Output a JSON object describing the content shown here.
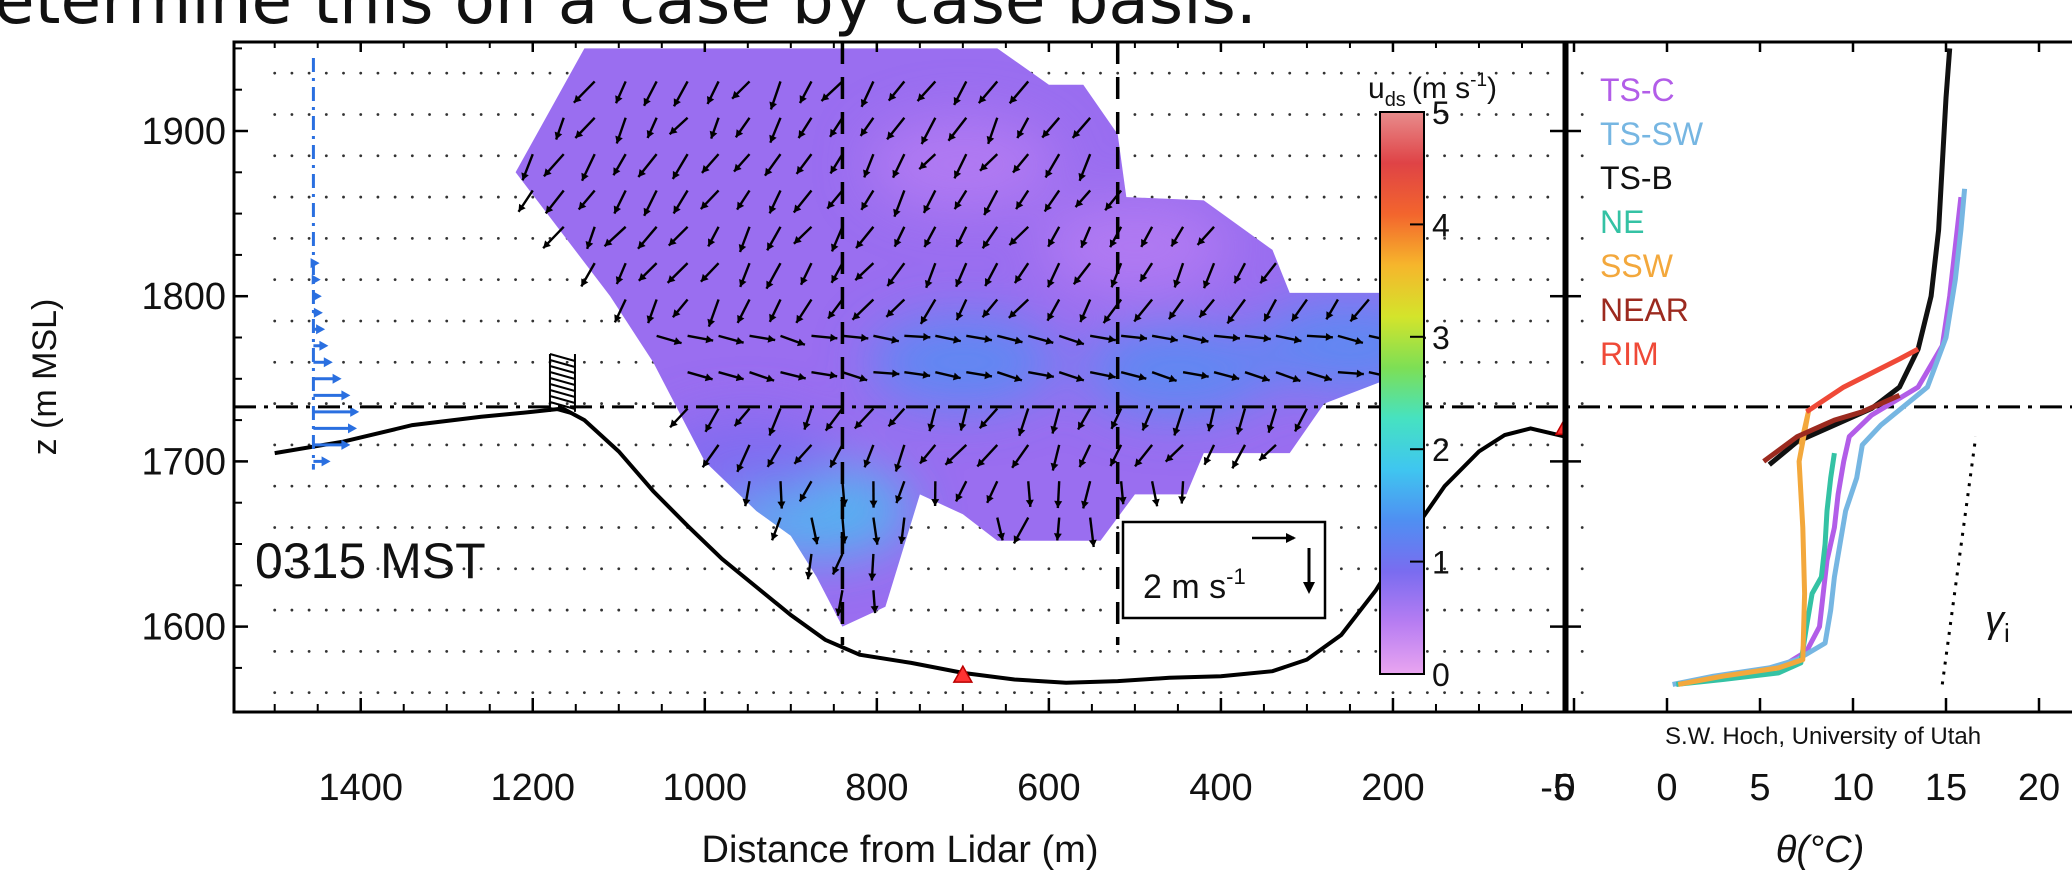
{
  "slide_heading": "etermine this on a case by case basis.",
  "credit": "S.W. Hoch, University of Utah",
  "chart_data": [
    {
      "type": "contour-vector",
      "time_label": "0315 MST",
      "xlabel": "Distance from Lidar (m)",
      "ylabel": "z (m MSL)",
      "xlim": [
        1500,
        0
      ],
      "ylim": [
        1555,
        1950
      ],
      "x_ticks": [
        "1400",
        "1200",
        "1000",
        "800",
        "600",
        "400",
        "200",
        "0"
      ],
      "y_ticks": [
        "1900",
        "1800",
        "1700",
        "1600"
      ],
      "colorbar": {
        "label_main": "u",
        "label_sub": "ds",
        "label_units": "(m s",
        "label_exp": "-1",
        "label_close": ")",
        "range": [
          0,
          5
        ],
        "ticks": [
          "5",
          "4",
          "3",
          "2",
          "1",
          "0"
        ],
        "colors": [
          "#e9a5f0",
          "#b77df2",
          "#7a6cf0",
          "#4f8ff2",
          "#3fc6f0",
          "#46e2c1",
          "#7ddf55",
          "#d4e42b",
          "#f6b62c",
          "#f3652d",
          "#df4346",
          "#e88c8c"
        ]
      },
      "reference_vector": {
        "label": "2 m s",
        "label_exp": "-1",
        "speed": 2
      },
      "inversion_height": 1733,
      "terrain_profile": [
        {
          "x": 1500,
          "z": 1705
        },
        {
          "x": 1420,
          "z": 1712
        },
        {
          "x": 1340,
          "z": 1722
        },
        {
          "x": 1260,
          "z": 1727
        },
        {
          "x": 1200,
          "z": 1730
        },
        {
          "x": 1165,
          "z": 1732
        },
        {
          "x": 1140,
          "z": 1725
        },
        {
          "x": 1100,
          "z": 1706
        },
        {
          "x": 1060,
          "z": 1682
        },
        {
          "x": 1020,
          "z": 1661
        },
        {
          "x": 980,
          "z": 1641
        },
        {
          "x": 940,
          "z": 1624
        },
        {
          "x": 900,
          "z": 1607
        },
        {
          "x": 860,
          "z": 1592
        },
        {
          "x": 820,
          "z": 1583
        },
        {
          "x": 760,
          "z": 1578
        },
        {
          "x": 700,
          "z": 1572
        },
        {
          "x": 640,
          "z": 1568
        },
        {
          "x": 580,
          "z": 1566
        },
        {
          "x": 520,
          "z": 1567
        },
        {
          "x": 460,
          "z": 1569
        },
        {
          "x": 400,
          "z": 1570
        },
        {
          "x": 340,
          "z": 1573
        },
        {
          "x": 300,
          "z": 1580
        },
        {
          "x": 260,
          "z": 1595
        },
        {
          "x": 220,
          "z": 1622
        },
        {
          "x": 180,
          "z": 1655
        },
        {
          "x": 140,
          "z": 1685
        },
        {
          "x": 100,
          "z": 1706
        },
        {
          "x": 70,
          "z": 1716
        },
        {
          "x": 40,
          "z": 1720
        },
        {
          "x": 0,
          "z": 1715
        },
        {
          "x": -40,
          "z": 1712
        }
      ],
      "scan_region": [
        {
          "x": 1140,
          "z": 1950
        },
        {
          "x": 660,
          "z": 1950
        },
        {
          "x": 600,
          "z": 1928
        },
        {
          "x": 560,
          "z": 1928
        },
        {
          "x": 520,
          "z": 1898
        },
        {
          "x": 510,
          "z": 1860
        },
        {
          "x": 420,
          "z": 1858
        },
        {
          "x": 340,
          "z": 1828
        },
        {
          "x": 320,
          "z": 1802
        },
        {
          "x": 180,
          "z": 1802
        },
        {
          "x": 180,
          "z": 1755
        },
        {
          "x": 280,
          "z": 1735
        },
        {
          "x": 320,
          "z": 1705
        },
        {
          "x": 420,
          "z": 1705
        },
        {
          "x": 440,
          "z": 1680
        },
        {
          "x": 500,
          "z": 1680
        },
        {
          "x": 540,
          "z": 1652
        },
        {
          "x": 660,
          "z": 1652
        },
        {
          "x": 700,
          "z": 1668
        },
        {
          "x": 750,
          "z": 1680
        },
        {
          "x": 790,
          "z": 1612
        },
        {
          "x": 840,
          "z": 1600
        },
        {
          "x": 870,
          "z": 1630
        },
        {
          "x": 900,
          "z": 1655
        },
        {
          "x": 940,
          "z": 1670
        },
        {
          "x": 1000,
          "z": 1700
        },
        {
          "x": 1060,
          "z": 1760
        },
        {
          "x": 1110,
          "z": 1800
        },
        {
          "x": 1220,
          "z": 1875
        }
      ],
      "speed_blobs": [
        {
          "x": 870,
          "z": 1670,
          "speed": 2.0
        },
        {
          "x": 700,
          "z": 1760,
          "speed": 1.5
        },
        {
          "x": 450,
          "z": 1755,
          "speed": 1.4
        },
        {
          "x": 250,
          "z": 1770,
          "speed": 1.3
        },
        {
          "x": 950,
          "z": 1700,
          "speed": 1.1
        },
        {
          "x": 700,
          "z": 1880,
          "speed": 0.6
        },
        {
          "x": 500,
          "z": 1830,
          "speed": 0.6
        }
      ],
      "sites": [
        {
          "x": 700,
          "z": 1570
        },
        {
          "x": 0,
          "z": 1720
        }
      ],
      "dashed_verticals": [
        840,
        520
      ],
      "upstream_profile": {
        "x": 1455,
        "z": [
          1700,
          1710,
          1720,
          1730,
          1740,
          1750,
          1760,
          1770,
          1780,
          1790,
          1800,
          1810,
          1820
        ],
        "u": [
          0.6,
          1.5,
          1.8,
          1.9,
          1.5,
          1.1,
          0.7,
          0.5,
          0.35,
          0.25,
          0.2,
          0.15,
          0.1
        ]
      },
      "tower": {
        "x": 1180,
        "z_bottom": 1730,
        "z_top": 1765
      }
    },
    {
      "type": "line",
      "xlabel": "θ(°C)",
      "xlim": [
        -5,
        20
      ],
      "x_ticks": [
        "-5",
        "0",
        "5",
        "10",
        "15",
        "20"
      ],
      "ylim": [
        1555,
        1950
      ],
      "annotation": "γ",
      "annotation_sub": "i",
      "legend_position": "top-left",
      "series": [
        {
          "name": "TS-C",
          "color": "#b25de8",
          "points": [
            [
              0.5,
              1565
            ],
            [
              2,
              1568
            ],
            [
              5,
              1572
            ],
            [
              6.5,
              1578
            ],
            [
              7.5,
              1585
            ],
            [
              8.2,
              1600
            ],
            [
              8.4,
              1620
            ],
            [
              8.6,
              1640
            ],
            [
              9,
              1660
            ],
            [
              9.2,
              1680
            ],
            [
              9.5,
              1700
            ],
            [
              9.8,
              1715
            ],
            [
              11,
              1728
            ],
            [
              13.5,
              1745
            ],
            [
              14.8,
              1770
            ],
            [
              15.2,
              1800
            ],
            [
              15.5,
              1830
            ],
            [
              15.8,
              1860
            ]
          ]
        },
        {
          "name": "TS-SW",
          "color": "#76b6e2",
          "points": [
            [
              0.3,
              1565
            ],
            [
              2.5,
              1570
            ],
            [
              5.5,
              1575
            ],
            [
              7,
              1580
            ],
            [
              8.5,
              1590
            ],
            [
              8.8,
              1610
            ],
            [
              9,
              1630
            ],
            [
              9.3,
              1650
            ],
            [
              9.6,
              1670
            ],
            [
              10.2,
              1690
            ],
            [
              10.5,
              1710
            ],
            [
              11.5,
              1722
            ],
            [
              14,
              1745
            ],
            [
              15,
              1775
            ],
            [
              15.5,
              1810
            ],
            [
              15.8,
              1840
            ],
            [
              16,
              1865
            ]
          ]
        },
        {
          "name": "TS-B",
          "color": "#111111",
          "points": [
            [
              5.5,
              1698
            ],
            [
              7,
              1712
            ],
            [
              9,
              1722
            ],
            [
              11,
              1732
            ],
            [
              12.5,
              1745
            ],
            [
              13.5,
              1768
            ],
            [
              14.2,
              1800
            ],
            [
              14.6,
              1840
            ],
            [
              14.8,
              1880
            ],
            [
              15,
              1920
            ],
            [
              15.2,
              1950
            ]
          ]
        },
        {
          "name": "NE",
          "color": "#34c2a4",
          "points": [
            [
              0.5,
              1565
            ],
            [
              3,
              1568
            ],
            [
              6,
              1572
            ],
            [
              7.2,
              1578
            ],
            [
              7.5,
              1600
            ],
            [
              7.8,
              1620
            ],
            [
              8.3,
              1630
            ],
            [
              8.5,
              1650
            ],
            [
              8.6,
              1670
            ],
            [
              8.8,
              1690
            ],
            [
              9,
              1705
            ]
          ]
        },
        {
          "name": "SSW",
          "color": "#f3a83c",
          "points": [
            [
              0.6,
              1565
            ],
            [
              3,
              1570
            ],
            [
              6,
              1575
            ],
            [
              7.3,
              1580
            ],
            [
              7.4,
              1620
            ],
            [
              7.3,
              1660
            ],
            [
              7.1,
              1700
            ],
            [
              7.6,
              1730
            ],
            [
              7.2,
              1710
            ]
          ]
        },
        {
          "name": "NEAR",
          "color": "#9c2a1f",
          "points": [
            [
              5.2,
              1700
            ],
            [
              7,
              1715
            ],
            [
              9,
              1725
            ],
            [
              10.5,
              1730
            ],
            [
              12.5,
              1740
            ]
          ]
        },
        {
          "name": "RIM",
          "color": "#ef4937",
          "points": [
            [
              7.5,
              1730
            ],
            [
              9.5,
              1745
            ],
            [
              12.5,
              1762
            ],
            [
              13.5,
              1768
            ]
          ]
        }
      ]
    }
  ]
}
